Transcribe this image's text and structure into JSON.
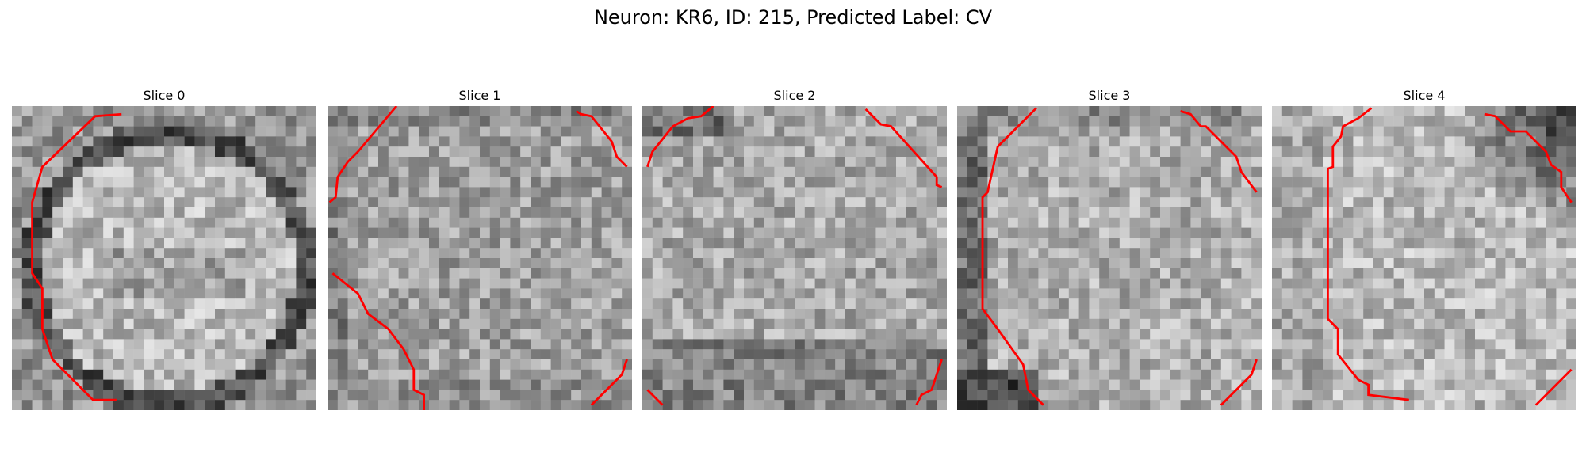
{
  "figure": {
    "title": "Neuron: KR6, ID: 215, Predicted Label: CV"
  },
  "colors": {
    "contour": "#ff0000",
    "background": "#ffffff"
  },
  "panels": [
    {
      "title": "Slice 0"
    },
    {
      "title": "Slice 1"
    },
    {
      "title": "Slice 2"
    },
    {
      "title": "Slice 3"
    },
    {
      "title": "Slice 4"
    }
  ]
}
